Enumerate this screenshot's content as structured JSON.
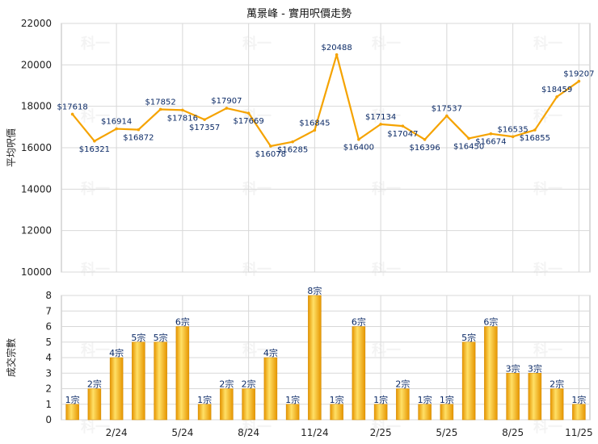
{
  "chart_title": "萬景峰 - 實用呎價走勢",
  "watermark_text": "科一",
  "colors": {
    "line": "#F5A300",
    "bar_light": "#FFE066",
    "bar_dark": "#E69500",
    "grid": "#d8d8d8",
    "axis_text": "#222222",
    "label_text": "#0b2a66"
  },
  "chart_data": [
    {
      "type": "line",
      "ylabel": "平均呎價",
      "ylim": [
        10000,
        22000
      ],
      "yticks": [
        10000,
        12000,
        14000,
        16000,
        18000,
        20000,
        22000
      ],
      "grid": true,
      "values": [
        17618,
        16321,
        16914,
        16872,
        17852,
        17816,
        17357,
        17907,
        17669,
        16078,
        16285,
        16845,
        20488,
        16400,
        17134,
        17047,
        16396,
        17537,
        16450,
        16674,
        16535,
        16855,
        18459,
        19207
      ],
      "labels": [
        "$17618",
        "$16321",
        "$16914",
        "$16872",
        "$17852",
        "$17816",
        "$17357",
        "$17907",
        "$17669",
        "$16078",
        "$16285",
        "$16845",
        "$20488",
        "$16400",
        "$17134",
        "$17047",
        "$16396",
        "$17537",
        "$16450",
        "$16674",
        "$16535",
        "$16855",
        "$18459",
        "$19207"
      ],
      "label_positions": [
        "above",
        "below",
        "above",
        "below",
        "above",
        "below",
        "below",
        "above",
        "below",
        "below",
        "below",
        "above",
        "above",
        "below",
        "above",
        "below",
        "below",
        "above",
        "below",
        "below",
        "above",
        "below",
        "above",
        "above"
      ]
    },
    {
      "type": "bar",
      "ylabel": "成交宗數",
      "ylim": [
        0,
        8
      ],
      "yticks": [
        0,
        1,
        2,
        3,
        4,
        5,
        6,
        7,
        8
      ],
      "grid": true,
      "values": [
        1,
        2,
        4,
        5,
        5,
        6,
        1,
        2,
        2,
        4,
        1,
        8,
        1,
        6,
        1,
        2,
        1,
        1,
        5,
        6,
        3,
        3,
        2,
        1
      ],
      "labels": [
        "1宗",
        "2宗",
        "4宗",
        "5宗",
        "5宗",
        "6宗",
        "1宗",
        "2宗",
        "2宗",
        "4宗",
        "1宗",
        "8宗",
        "1宗",
        "6宗",
        "1宗",
        "2宗",
        "1宗",
        "1宗",
        "5宗",
        "6宗",
        "3宗",
        "3宗",
        "2宗",
        "1宗"
      ],
      "x_tick_labels": [
        "2/24",
        "5/24",
        "8/24",
        "11/24",
        "2/25",
        "5/25",
        "8/25",
        "11/25"
      ],
      "x_tick_indices": [
        2,
        5,
        8,
        11,
        14,
        17,
        20,
        23
      ]
    }
  ]
}
